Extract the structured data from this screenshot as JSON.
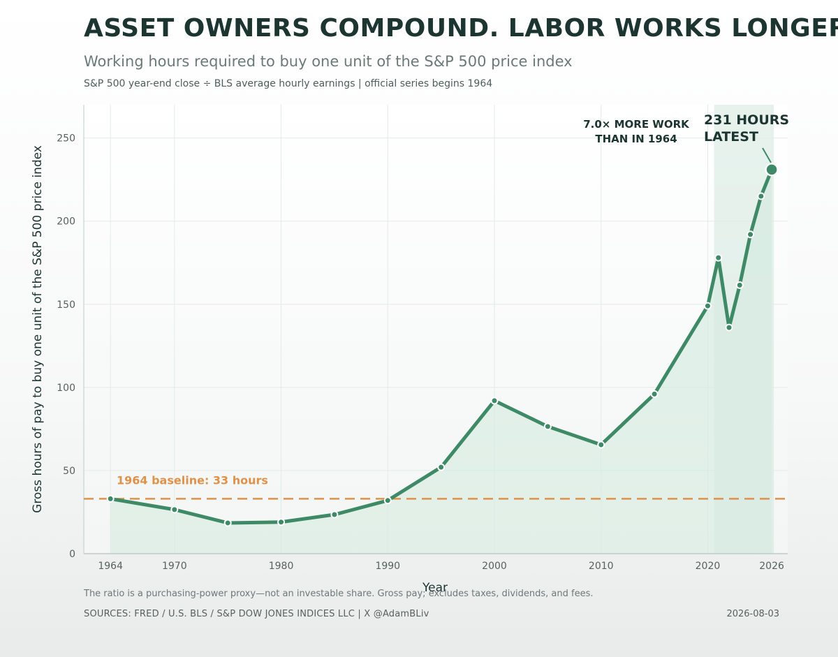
{
  "title": "ASSET OWNERS COMPOUND. LABOR WORKS LONGER.",
  "subtitle": "Working hours required to buy one unit of the S&P 500 price index",
  "subsubtitle": "S&P 500 year-end close ÷ BLS average hourly earnings | official series begins 1964",
  "footer": {
    "note": "The ratio is a purchasing-power proxy—not an investable share. Gross pay; excludes taxes, dividends, and fees.",
    "sources": "SOURCES: FRED / U.S. BLS / S&P DOW JONES INDICES LLC  |  X @AdamBLiv",
    "date": "2026-08-03"
  },
  "colors": {
    "line": "#3f8a66",
    "fill": "#d6ebe0",
    "baseline": "#e0914a",
    "highlight_band": "#cfe6dc",
    "text_dark": "#1c3530",
    "grid": "#e2ebe8"
  },
  "chart_data": {
    "type": "line",
    "xlabel": "Year",
    "ylabel": "Gross hours of pay to buy one unit of the S&P 500 price index",
    "xlim": [
      1964,
      2026
    ],
    "ylim": [
      0,
      270
    ],
    "xticks": [
      1964,
      1970,
      1980,
      1990,
      2000,
      2010,
      2020,
      2026
    ],
    "yticks": [
      0,
      50,
      100,
      150,
      200,
      250
    ],
    "grid": true,
    "series": [
      {
        "x": [
          1964,
          1970,
          1975,
          1980,
          1985,
          1990,
          1995,
          2000,
          2005,
          2010,
          2015,
          2020,
          2021,
          2022,
          2023,
          2024,
          2025,
          2026
        ],
        "y": [
          33,
          26.5,
          18.5,
          19,
          23.5,
          32,
          52,
          92,
          76.5,
          65.5,
          96,
          149,
          178,
          136,
          161.5,
          192,
          215,
          231
        ]
      }
    ],
    "baseline": {
      "value": 33,
      "label": "1964 baseline: 33 hours"
    },
    "highlight_range": [
      2021,
      2026
    ],
    "annotations": {
      "multiple": "7.0× MORE WORK\nTHAN IN 1964",
      "latest": "231 HOURS\nLATEST"
    }
  }
}
